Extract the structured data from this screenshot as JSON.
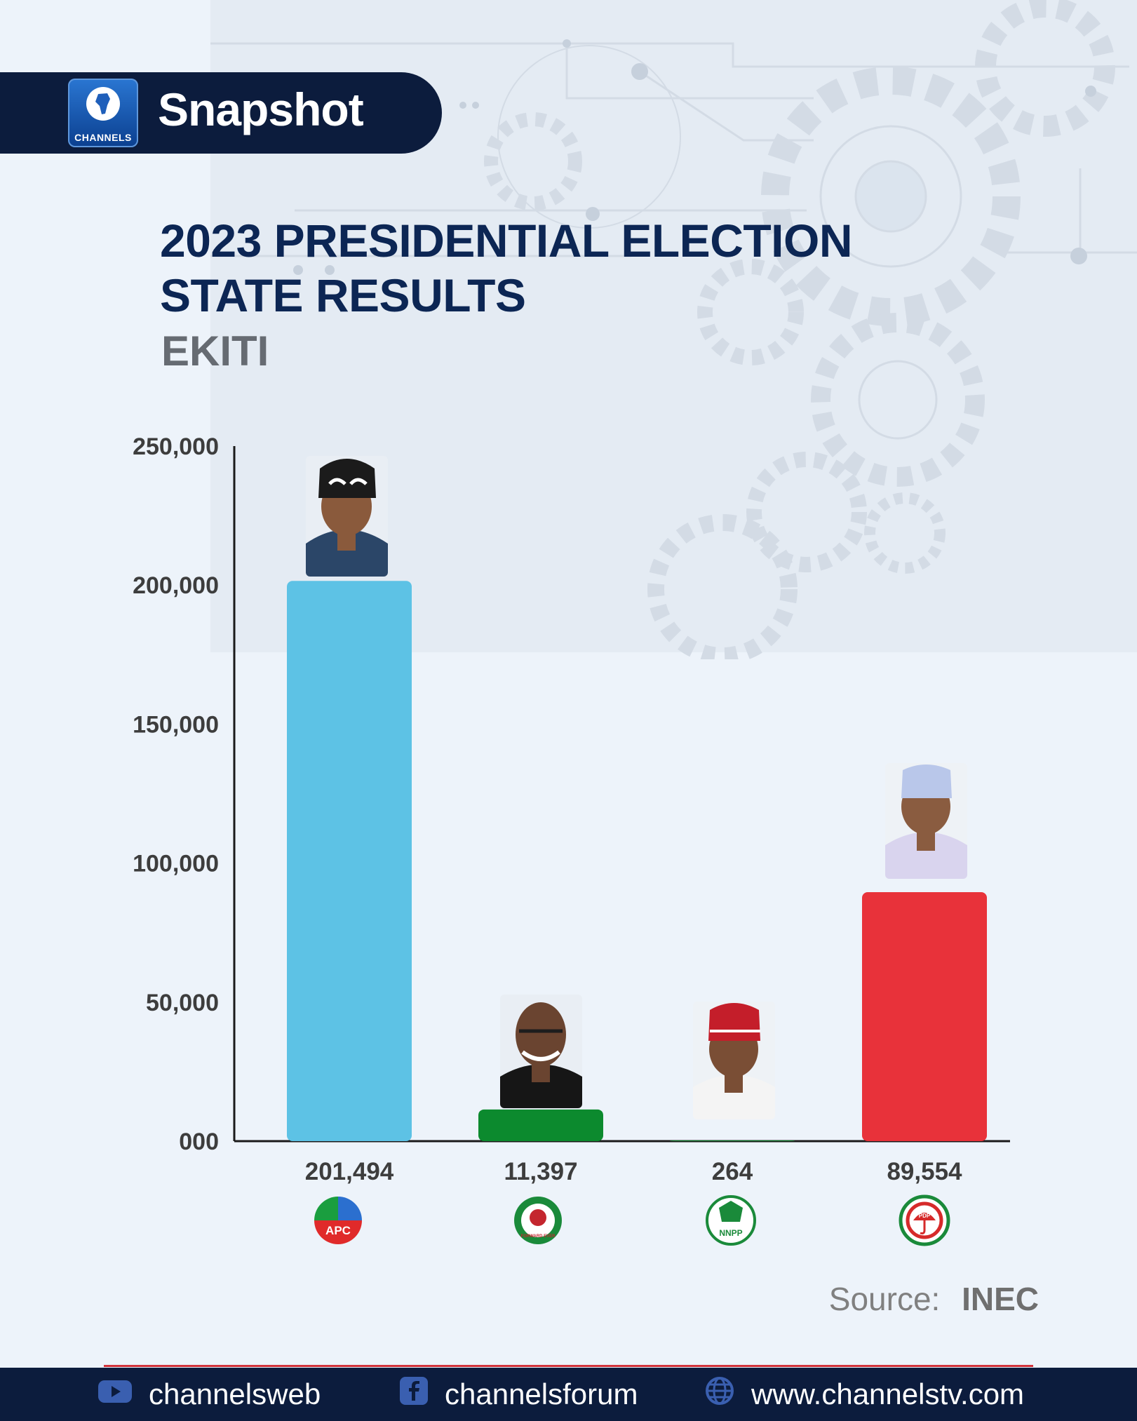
{
  "header": {
    "logo_text": "CHANNELS",
    "badge": "Snapshot"
  },
  "titles": {
    "line1": "2023 PRESIDENTIAL ELECTION",
    "line2": "STATE RESULTS",
    "state": "EKITI"
  },
  "chart_data": {
    "type": "bar",
    "categories": [
      "APC",
      "LP",
      "NNPP",
      "PDP"
    ],
    "values": [
      201494,
      11397,
      264,
      89554
    ],
    "value_labels": [
      "201,494",
      "11,397",
      "264",
      "89,554"
    ],
    "colors": [
      "#5dc2e5",
      "#0c8a2e",
      "#0c8a2e",
      "#e8323a"
    ],
    "ylim": [
      0,
      250000
    ],
    "yticks": [
      0,
      50000,
      100000,
      150000,
      200000,
      250000
    ],
    "ytick_labels": [
      "000",
      "50,000",
      "100,000",
      "150,000",
      "200,000",
      "250,000"
    ],
    "grid": false,
    "legend": "none"
  },
  "party_logos": {
    "apc": "APC",
    "lp": "FORWARD EVER",
    "nnpp": "NNPP",
    "pdp": "PDP"
  },
  "source": {
    "label": "Source:",
    "value": "INEC"
  },
  "footer": {
    "youtube": "channelsweb",
    "facebook": "channelsforum",
    "website": "www.channelstv.com"
  }
}
